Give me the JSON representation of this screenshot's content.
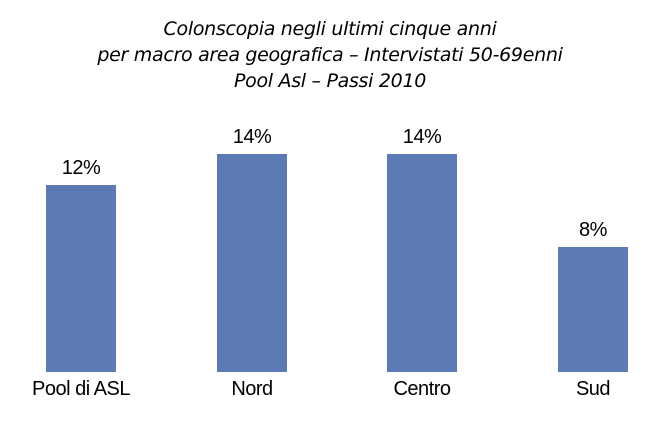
{
  "title": {
    "line1": "Colonscopia negli ultimi cinque anni",
    "line2": "per macro area geografica – Intervistati 50-69enni",
    "line3": "Pool Asl – Passi 2010"
  },
  "chart_data": {
    "type": "bar",
    "title": "Colonscopia negli ultimi cinque anni per macro area geografica – Intervistati 50-69enni Pool Asl – Passi 2010",
    "categories": [
      "Pool di ASL",
      "Nord",
      "Centro",
      "Sud"
    ],
    "values": [
      12,
      14,
      14,
      8
    ],
    "value_labels": [
      "12%",
      "14%",
      "14%",
      "8%"
    ],
    "unit": "%",
    "xlabel": "",
    "ylabel": "",
    "ylim": [
      0,
      15
    ],
    "grid": false,
    "legend": false,
    "bar_color": "#5B7AB6",
    "text_color": "#000000",
    "background_color": "#FFFFFF"
  }
}
